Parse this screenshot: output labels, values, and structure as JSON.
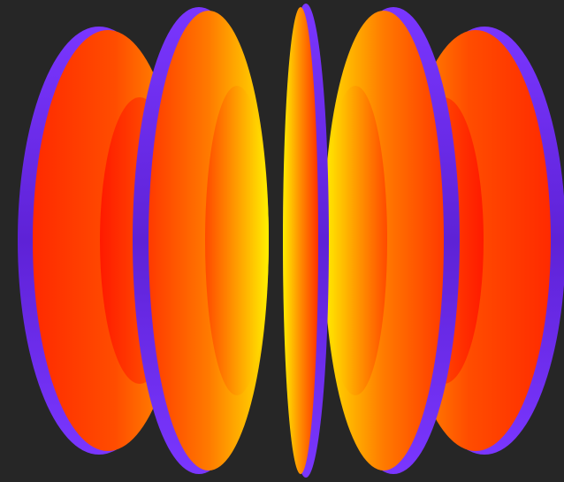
{
  "image": {
    "subject": "3d-rendered-concentric-disks",
    "colors": {
      "background": "#262626",
      "rim": "#6a28e6",
      "rim_dark": "#4a1aa8",
      "hot_yellow": "#fff200",
      "orange": "#ff8a00",
      "red": "#ff1e00"
    }
  }
}
